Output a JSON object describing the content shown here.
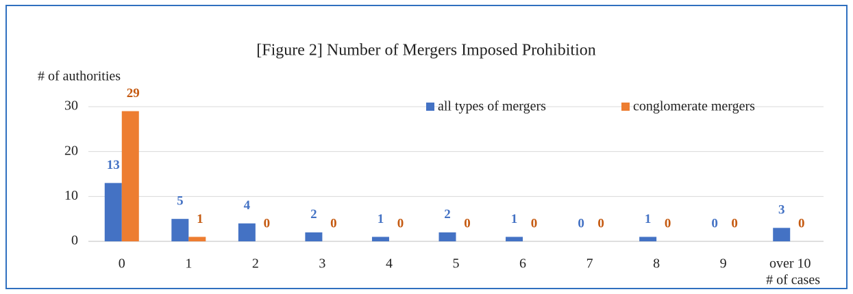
{
  "chart_data": {
    "type": "bar",
    "title": "[Figure 2]  Number of Mergers Imposed Prohibition",
    "y_label": "# of authorities",
    "x_label": "# of cases",
    "categories": [
      "0",
      "1",
      "2",
      "3",
      "4",
      "5",
      "6",
      "7",
      "8",
      "9",
      "over 10"
    ],
    "series": [
      {
        "name": "all types of mergers",
        "color": "#4472c4",
        "label_color": "#4472c4",
        "values": [
          13,
          5,
          4,
          2,
          1,
          2,
          1,
          0,
          1,
          0,
          3
        ]
      },
      {
        "name": "conglomerate mergers",
        "color": "#ed7d31",
        "label_color": "#c55a11",
        "values": [
          29,
          1,
          0,
          0,
          0,
          0,
          0,
          0,
          0,
          0,
          0
        ]
      }
    ],
    "ylim": [
      0,
      30
    ],
    "yticks": [
      0,
      10,
      20,
      30
    ],
    "grid": true,
    "legend": "top-right"
  }
}
